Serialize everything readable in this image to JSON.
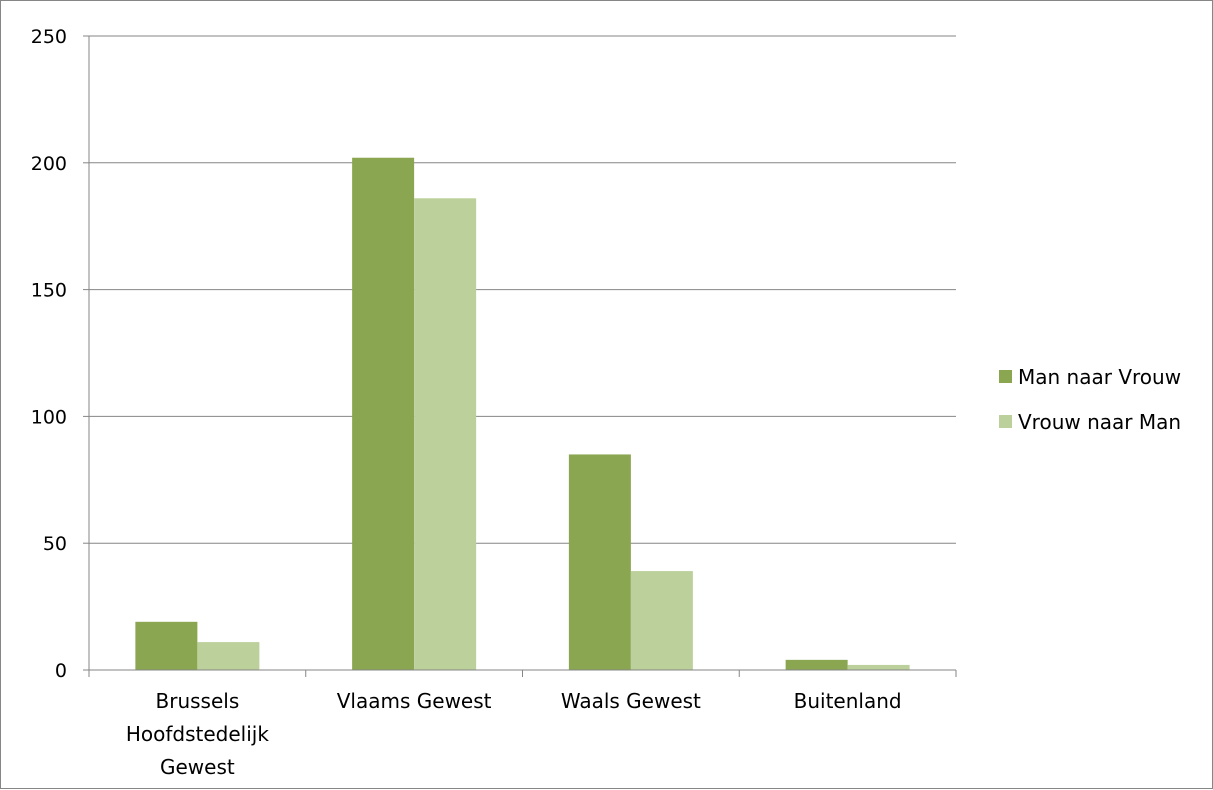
{
  "chart_data": {
    "type": "bar",
    "title": "",
    "xlabel": "",
    "ylabel": "",
    "categories": [
      [
        "Brussels",
        "Hoofdstedelijk",
        "Gewest"
      ],
      [
        "Vlaams Gewest"
      ],
      [
        "Waals Gewest"
      ],
      [
        "Buitenland"
      ]
    ],
    "series": [
      {
        "name": "Man naar Vrouw",
        "color": "#8BA650",
        "values": [
          19,
          202,
          85,
          4
        ]
      },
      {
        "name": "Vrouw naar Man",
        "color": "#BBD09A",
        "values": [
          11,
          186,
          39,
          2
        ]
      }
    ],
    "ylim": [
      0,
      250
    ],
    "yticks": [
      0,
      50,
      100,
      150,
      200,
      250
    ],
    "grid": true,
    "legend_position": "right"
  }
}
